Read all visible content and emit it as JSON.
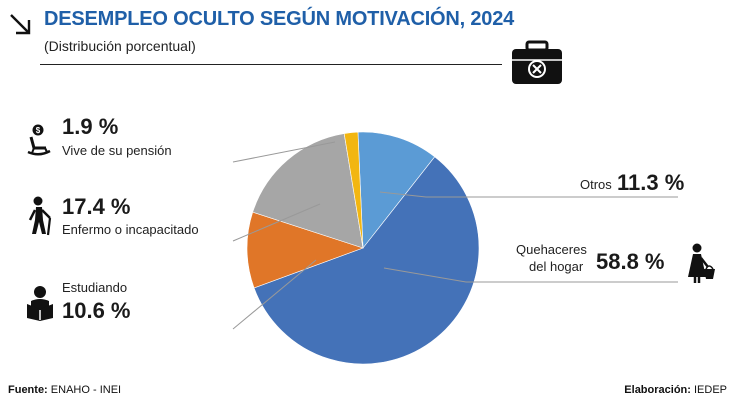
{
  "header": {
    "title": "DESEMPLEO OCULTO SEGÚN MOTIVACIÓN, 2024",
    "subtitle": "(Distribución porcentual)"
  },
  "chart_data": {
    "type": "pie",
    "title": "DESEMPLEO OCULTO SEGÚN MOTIVACIÓN, 2024",
    "subtitle": "(Distribución porcentual)",
    "slices": [
      {
        "label": "Otros",
        "value": 11.3,
        "display": "11.3 %",
        "color": "#5b9bd5"
      },
      {
        "label": "Quehaceres del hogar",
        "value": 58.8,
        "display": "58.8 %",
        "color": "#4472b8"
      },
      {
        "label": "Estudiando",
        "value": 10.6,
        "display": "10.6 %",
        "color": "#e07628"
      },
      {
        "label": "Enfermo o incapacitado",
        "value": 17.4,
        "display": "17.4 %",
        "color": "#a6a6a6"
      },
      {
        "label": "Vive de su pensión",
        "value": 1.9,
        "display": "1.9 %",
        "color": "#f2b611"
      }
    ]
  },
  "labels": {
    "pension": {
      "pct": "1.9 %",
      "text": "Vive de su pensión",
      "icon": "rocking-chair-icon"
    },
    "enfermo": {
      "pct": "17.4 %",
      "text": "Enfermo o incapacitado",
      "icon": "person-with-cane-icon"
    },
    "estudiando": {
      "pct": "10.6 %",
      "text": "Estudiando",
      "icon": "student-reading-icon"
    },
    "otros": {
      "pct": "11.3 %",
      "text": "Otros"
    },
    "hogar": {
      "pct": "58.8 %",
      "text1": "Quehaceres",
      "text2": "del hogar",
      "icon": "person-with-basket-icon"
    }
  },
  "footer": {
    "source_label": "Fuente:",
    "source_value": "ENAHO - INEI",
    "credit_label": "Elaboración:",
    "credit_value": "IEDEP"
  },
  "icons": {
    "header_arrow": "arrow-down-right-icon",
    "briefcase": "briefcase-x-icon"
  }
}
